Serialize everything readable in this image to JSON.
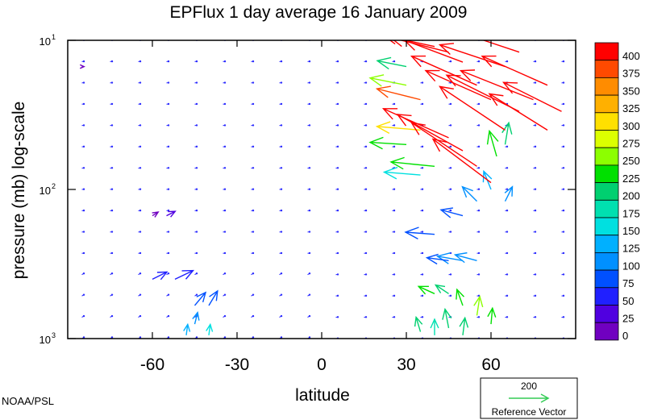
{
  "title": "EPFlux  1 day average  16 January   2009",
  "credit": "NOAA/PSL",
  "chart_data": {
    "type": "vector-field",
    "title": "EPFlux  1 day average  16 January   2009",
    "xlabel": "latitude",
    "ylabel": "pressure (mb)  log-scale",
    "x_ticks": [
      {
        "value": -60,
        "label": "-60"
      },
      {
        "value": -30,
        "label": "-30"
      },
      {
        "value": 0,
        "label": "0"
      },
      {
        "value": 30,
        "label": "30"
      },
      {
        "value": 60,
        "label": "60"
      }
    ],
    "y_ticks": [
      {
        "value": 10,
        "base": "10",
        "exp": "1"
      },
      {
        "value": 100,
        "base": "10",
        "exp": "2"
      },
      {
        "value": 1000,
        "base": "10",
        "exp": "3"
      }
    ],
    "xlim": [
      -90,
      90
    ],
    "ylim": [
      1000,
      10
    ],
    "y_scale": "log",
    "grid": false,
    "colorbar": {
      "labels": [
        "400",
        "375",
        "350",
        "325",
        "300",
        "275",
        "250",
        "225",
        "200",
        "175",
        "150",
        "125",
        "100",
        "75",
        "50",
        "25",
        "0"
      ],
      "colors": [
        "#ff0000",
        "#ff4a00",
        "#ff8c00",
        "#ffb000",
        "#ffe000",
        "#dcff00",
        "#8cff00",
        "#00e000",
        "#00d070",
        "#00e0b0",
        "#00e0e0",
        "#00b0ff",
        "#0090ff",
        "#0050ff",
        "#2020ff",
        "#5000e0",
        "#7000c0"
      ]
    },
    "reference_vector": {
      "magnitude": "200",
      "label": "Reference Vector"
    },
    "vectors": [
      {
        "lat": -85,
        "p": 15,
        "u": 0.3,
        "v": 0.0,
        "mag": 5
      },
      {
        "lat": -60,
        "p": 150,
        "u": 0.8,
        "v": 0.5,
        "mag": 20
      },
      {
        "lat": -55,
        "p": 150,
        "u": 1.2,
        "v": 0.6,
        "mag": 30
      },
      {
        "lat": -60,
        "p": 400,
        "u": 2.0,
        "v": 1.0,
        "mag": 60
      },
      {
        "lat": -52,
        "p": 400,
        "u": 2.5,
        "v": 1.2,
        "mag": 70
      },
      {
        "lat": -45,
        "p": 600,
        "u": 1.5,
        "v": 1.8,
        "mag": 90
      },
      {
        "lat": -40,
        "p": 600,
        "u": 1.2,
        "v": 2.0,
        "mag": 90
      },
      {
        "lat": -45,
        "p": 800,
        "u": 0.4,
        "v": 1.6,
        "mag": 110
      },
      {
        "lat": -40,
        "p": 950,
        "u": 0.2,
        "v": 1.5,
        "mag": 150
      },
      {
        "lat": -48,
        "p": 950,
        "u": 0.2,
        "v": 1.5,
        "mag": 140
      },
      {
        "lat": 45,
        "p": 500,
        "u": -1.8,
        "v": 1.2,
        "mag": 220
      },
      {
        "lat": 40,
        "p": 500,
        "u": -2.2,
        "v": 1.0,
        "mag": 230
      },
      {
        "lat": 50,
        "p": 600,
        "u": -0.8,
        "v": 2.2,
        "mag": 240
      },
      {
        "lat": 55,
        "p": 700,
        "u": 0.4,
        "v": 2.6,
        "mag": 250
      },
      {
        "lat": 60,
        "p": 800,
        "u": 0.2,
        "v": 2.2,
        "mag": 230
      },
      {
        "lat": 45,
        "p": 850,
        "u": -0.5,
        "v": 2.6,
        "mag": 220
      },
      {
        "lat": 35,
        "p": 900,
        "u": -0.6,
        "v": 2.0,
        "mag": 200
      },
      {
        "lat": 40,
        "p": 950,
        "u": 0.0,
        "v": 2.2,
        "mag": 190
      },
      {
        "lat": 50,
        "p": 950,
        "u": 0.3,
        "v": 2.4,
        "mag": 210
      },
      {
        "lat": 55,
        "p": 300,
        "u": -3.0,
        "v": 0.8,
        "mag": 110
      },
      {
        "lat": 50,
        "p": 300,
        "u": -3.5,
        "v": 0.6,
        "mag": 100
      },
      {
        "lat": 45,
        "p": 300,
        "u": -3.0,
        "v": 0.4,
        "mag": 90
      },
      {
        "lat": 40,
        "p": 200,
        "u": -4.0,
        "v": 0.3,
        "mag": 95
      },
      {
        "lat": 50,
        "p": 150,
        "u": -3.0,
        "v": 0.8,
        "mag": 90
      },
      {
        "lat": 55,
        "p": 120,
        "u": -2.0,
        "v": 2.0,
        "mag": 110
      },
      {
        "lat": 60,
        "p": 100,
        "u": -1.0,
        "v": 2.5,
        "mag": 140
      },
      {
        "lat": 65,
        "p": 120,
        "u": 1.0,
        "v": 2.0,
        "mag": 120
      },
      {
        "lat": 35,
        "p": 80,
        "u": -5.0,
        "v": 0.4,
        "mag": 170
      },
      {
        "lat": 40,
        "p": 70,
        "u": -6.0,
        "v": 0.6,
        "mag": 240
      },
      {
        "lat": 30,
        "p": 50,
        "u": -5.0,
        "v": 0.3,
        "mag": 230
      },
      {
        "lat": 35,
        "p": 40,
        "u": -6.0,
        "v": 0.5,
        "mag": 300
      },
      {
        "lat": 62,
        "p": 60,
        "u": -1.0,
        "v": 3.5,
        "mag": 240
      },
      {
        "lat": 65,
        "p": 50,
        "u": 0.5,
        "v": 3.0,
        "mag": 200
      },
      {
        "lat": 60,
        "p": 90,
        "u": -8.0,
        "v": 6.0,
        "mag": 400
      },
      {
        "lat": 55,
        "p": 70,
        "u": -9.0,
        "v": 6.0,
        "mag": 400
      },
      {
        "lat": 50,
        "p": 55,
        "u": -9.0,
        "v": 5.0,
        "mag": 400
      },
      {
        "lat": 45,
        "p": 45,
        "u": -9.0,
        "v": 4.0,
        "mag": 400
      },
      {
        "lat": 65,
        "p": 40,
        "u": -9.0,
        "v": 6.0,
        "mag": 400
      },
      {
        "lat": 70,
        "p": 30,
        "u": -10.0,
        "v": 5.0,
        "mag": 400
      },
      {
        "lat": 75,
        "p": 25,
        "u": -10.0,
        "v": 4.0,
        "mag": 400
      },
      {
        "lat": 80,
        "p": 20,
        "u": -9.0,
        "v": 4.0,
        "mag": 400
      },
      {
        "lat": 60,
        "p": 25,
        "u": -9.0,
        "v": 4.0,
        "mag": 400
      },
      {
        "lat": 55,
        "p": 20,
        "u": -9.0,
        "v": 4.0,
        "mag": 400
      },
      {
        "lat": 65,
        "p": 15,
        "u": -9.0,
        "v": 3.0,
        "mag": 400
      },
      {
        "lat": 70,
        "p": 12,
        "u": -9.0,
        "v": 3.0,
        "mag": 400
      },
      {
        "lat": 50,
        "p": 14,
        "u": -8.0,
        "v": 3.0,
        "mag": 400
      },
      {
        "lat": 45,
        "p": 12,
        "u": -8.0,
        "v": 2.0,
        "mag": 400
      },
      {
        "lat": 40,
        "p": 11,
        "u": -7.0,
        "v": 1.5,
        "mag": 400
      },
      {
        "lat": 80,
        "p": 40,
        "u": -8.0,
        "v": 5.0,
        "mag": 400
      },
      {
        "lat": 85,
        "p": 30,
        "u": -8.0,
        "v": 4.0,
        "mag": 400
      },
      {
        "lat": 35,
        "p": 25,
        "u": -6.0,
        "v": 1.5,
        "mag": 380
      },
      {
        "lat": 30,
        "p": 20,
        "u": -5.0,
        "v": 1.0,
        "mag": 250
      },
      {
        "lat": 30,
        "p": 15,
        "u": -4.0,
        "v": 0.8,
        "mag": 200
      }
    ]
  }
}
